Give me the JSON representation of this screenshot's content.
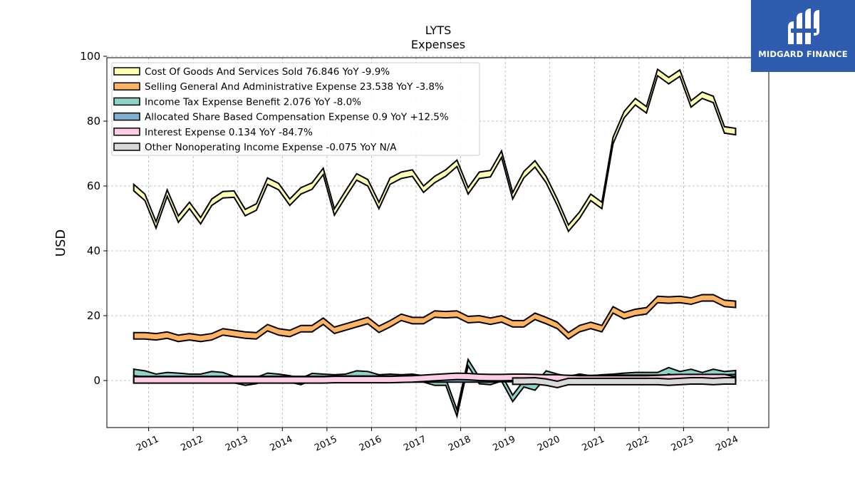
{
  "logo": {
    "text": "MIDGARD FINANCE"
  },
  "chart_data": {
    "type": "area",
    "title": "LYTS",
    "subtitle": "Expenses",
    "ylabel": "USD",
    "xlabel": "",
    "ylim": [
      -15,
      100
    ],
    "yticks": [
      0,
      20,
      40,
      60,
      80,
      100
    ],
    "xlim": [
      2010.1,
      2024.9
    ],
    "xticks": [
      "2011",
      "2012",
      "2013",
      "2014",
      "2015",
      "2016",
      "2017",
      "2018",
      "2019",
      "2020",
      "2021",
      "2022",
      "2023",
      "2024"
    ],
    "grid": true,
    "legend_position": "top-left",
    "x": [
      "2010-09",
      "2010-12",
      "2011-03",
      "2011-06",
      "2011-09",
      "2011-12",
      "2012-03",
      "2012-06",
      "2012-09",
      "2012-12",
      "2013-03",
      "2013-06",
      "2013-09",
      "2013-12",
      "2014-03",
      "2014-06",
      "2014-09",
      "2014-12",
      "2015-03",
      "2015-06",
      "2015-09",
      "2015-12",
      "2016-03",
      "2016-06",
      "2016-09",
      "2016-12",
      "2017-03",
      "2017-06",
      "2017-09",
      "2017-12",
      "2018-03",
      "2018-06",
      "2018-09",
      "2018-12",
      "2019-03",
      "2019-06",
      "2019-09",
      "2019-12",
      "2020-03",
      "2020-06",
      "2020-09",
      "2020-12",
      "2021-03",
      "2021-06",
      "2021-09",
      "2021-12",
      "2022-03",
      "2022-06",
      "2022-09",
      "2022-12",
      "2023-03",
      "2023-06",
      "2023-09",
      "2023-12",
      "2024-03"
    ],
    "series": [
      {
        "name": "Cost Of Goods And Services Sold",
        "legend": "Cost Of Goods And Services Sold  76.846 YoY -9.9%",
        "color": "#ffffb3",
        "values": [
          59.5,
          56.5,
          48,
          57.8,
          49.8,
          54,
          49.3,
          55,
          57.3,
          57.5,
          51.8,
          53.5,
          61.5,
          59.8,
          55,
          58.5,
          60,
          64.5,
          52,
          57.5,
          62.8,
          61,
          54,
          61.5,
          63.3,
          64,
          59,
          62,
          64,
          67,
          58.5,
          63.3,
          63.8,
          69.8,
          57,
          63.5,
          66.8,
          62,
          55,
          47,
          51,
          56.5,
          54,
          74,
          82,
          86,
          83.5,
          95,
          92.5,
          94.8,
          85.3,
          88,
          86.7,
          77.3,
          76.8
        ]
      },
      {
        "name": "Selling General And Administrative Expense",
        "legend": "Selling General And Administrative Expense  23.538 YoY -3.8%",
        "color": "#fdb462",
        "values": [
          13.8,
          13.8,
          13.5,
          14,
          13,
          13.5,
          13,
          13.5,
          15,
          14.5,
          14,
          13.8,
          16.3,
          15,
          14.5,
          16,
          16,
          18.3,
          15.5,
          16.5,
          17.5,
          18.5,
          15.8,
          17.5,
          19.5,
          18.5,
          18.5,
          20.5,
          20.3,
          20.5,
          18.8,
          19,
          18.3,
          19,
          17.5,
          17.5,
          19.8,
          18.5,
          17,
          13.8,
          16,
          17,
          16,
          21.8,
          20,
          21,
          21.5,
          25,
          24.8,
          25,
          24.5,
          25.5,
          25.5,
          23.8,
          23.5
        ]
      },
      {
        "name": "Income Tax Expense Benefit",
        "legend": "Income Tax Expense Benefit  2.076 YoY -8.0%",
        "color": "#8dd3c7",
        "values": [
          2.5,
          2,
          1,
          1.5,
          1.3,
          1,
          1,
          1.8,
          1.5,
          0.3,
          -0.5,
          0,
          1.3,
          1,
          0.5,
          -0.3,
          1.2,
          1,
          0.8,
          1,
          2,
          1.8,
          0.8,
          1,
          0.8,
          1,
          0.5,
          -0.5,
          -0.5,
          -10,
          5.5,
          0,
          -0.3,
          0.8,
          -5.5,
          -1,
          -2,
          2,
          1,
          0.3,
          1,
          0.5,
          0.8,
          1,
          1.3,
          1.5,
          1.5,
          1.5,
          3,
          1.8,
          2.5,
          1.5,
          2.5,
          1.8,
          2.1
        ]
      },
      {
        "name": "Allocated Share Based Compensation Expense",
        "legend": "Allocated Share Based Compensation Expense  0.9 YoY +12.5%",
        "color": "#80b1d3",
        "values": [
          0.3,
          0.3,
          0.3,
          0.3,
          0.3,
          0.3,
          0.3,
          0.3,
          0.3,
          0.3,
          0.3,
          0.3,
          0.3,
          0.3,
          0.3,
          0.3,
          0.3,
          0.3,
          0.4,
          0.4,
          0.4,
          0.4,
          0.4,
          0.4,
          0.4,
          0.5,
          0.5,
          0.5,
          0.5,
          0.5,
          0.5,
          0.5,
          0.5,
          0.6,
          0.6,
          0.6,
          0.6,
          0.6,
          0.6,
          0.6,
          0.6,
          0.6,
          0.7,
          0.7,
          0.7,
          0.7,
          0.7,
          0.7,
          0.8,
          0.8,
          0.8,
          0.8,
          0.8,
          0.8,
          0.9
        ]
      },
      {
        "name": "Interest Expense",
        "legend": "Interest Expense  0.134 YoY -84.7%",
        "color": "#fccde5",
        "values": [
          0.2,
          0.2,
          0.2,
          0.2,
          0.2,
          0.2,
          0.2,
          0.2,
          0.2,
          0.2,
          0.2,
          0.2,
          0.2,
          0.2,
          0.2,
          0.2,
          0.2,
          0.2,
          0.3,
          0.3,
          0.3,
          0.3,
          0.3,
          0.3,
          0.4,
          0.5,
          0.7,
          0.9,
          1.1,
          1.3,
          1.2,
          1.0,
          0.9,
          0.9,
          1.0,
          1.0,
          0.9,
          0.8,
          0.8,
          0.6,
          0.5,
          0.5,
          0.5,
          0.5,
          0.5,
          0.5,
          0.5,
          0.6,
          0.8,
          0.9,
          0.9,
          0.9,
          0.9,
          0.9,
          0.1
        ]
      },
      {
        "name": "Other Nonoperating Income Expense",
        "legend": "Other Nonoperating Income Expense  -0.075 YoY N/A",
        "color": "#d9d9d9",
        "values": [
          null,
          null,
          null,
          null,
          null,
          null,
          null,
          null,
          null,
          null,
          null,
          null,
          null,
          null,
          null,
          null,
          null,
          null,
          null,
          null,
          null,
          null,
          null,
          null,
          null,
          null,
          null,
          null,
          null,
          null,
          null,
          null,
          null,
          null,
          -0.2,
          -0.2,
          -0.1,
          -0.5,
          -1.2,
          -0.3,
          -0.3,
          -0.3,
          -0.3,
          -0.3,
          -0.3,
          -0.3,
          -0.3,
          -0.3,
          -0.5,
          -0.3,
          -0.1,
          -0.1,
          -0.3,
          -0.1,
          -0.1
        ]
      }
    ]
  }
}
